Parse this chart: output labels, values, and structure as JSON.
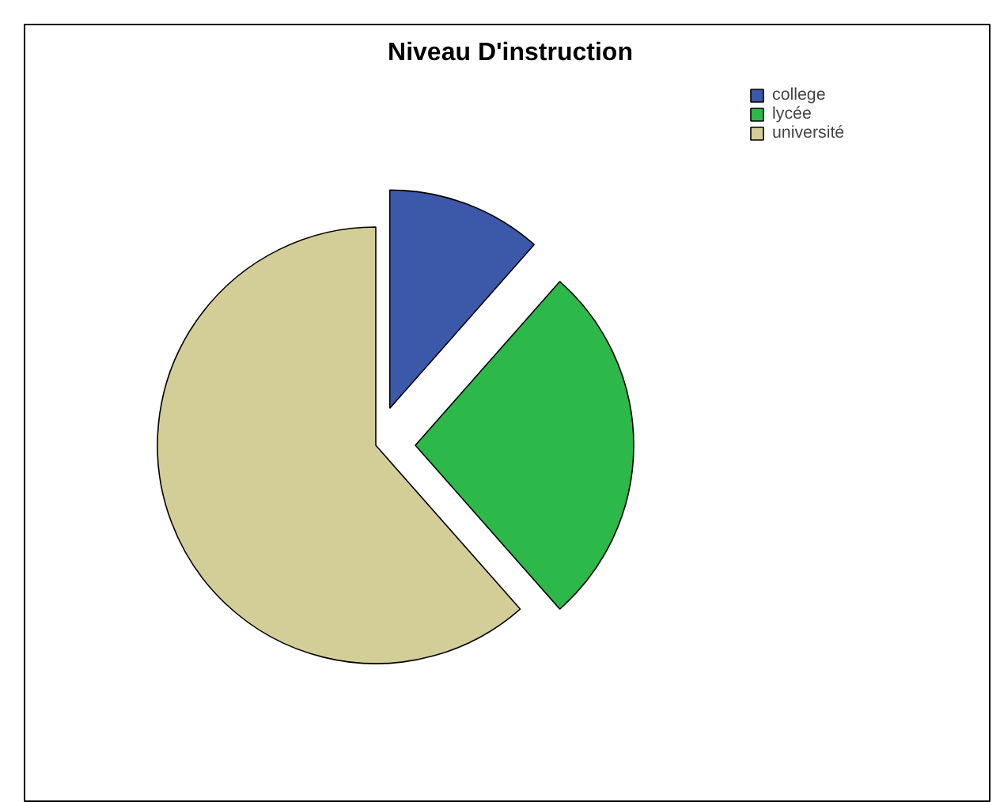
{
  "chart_data": {
    "type": "pie",
    "title": "Niveau D'instruction",
    "categories": [
      "college",
      "lycée",
      "université"
    ],
    "values": [
      11.5,
      27,
      61.5
    ],
    "colors": [
      "#3c58a8",
      "#2db84a",
      "#d3ce98"
    ],
    "legend": "top right"
  }
}
